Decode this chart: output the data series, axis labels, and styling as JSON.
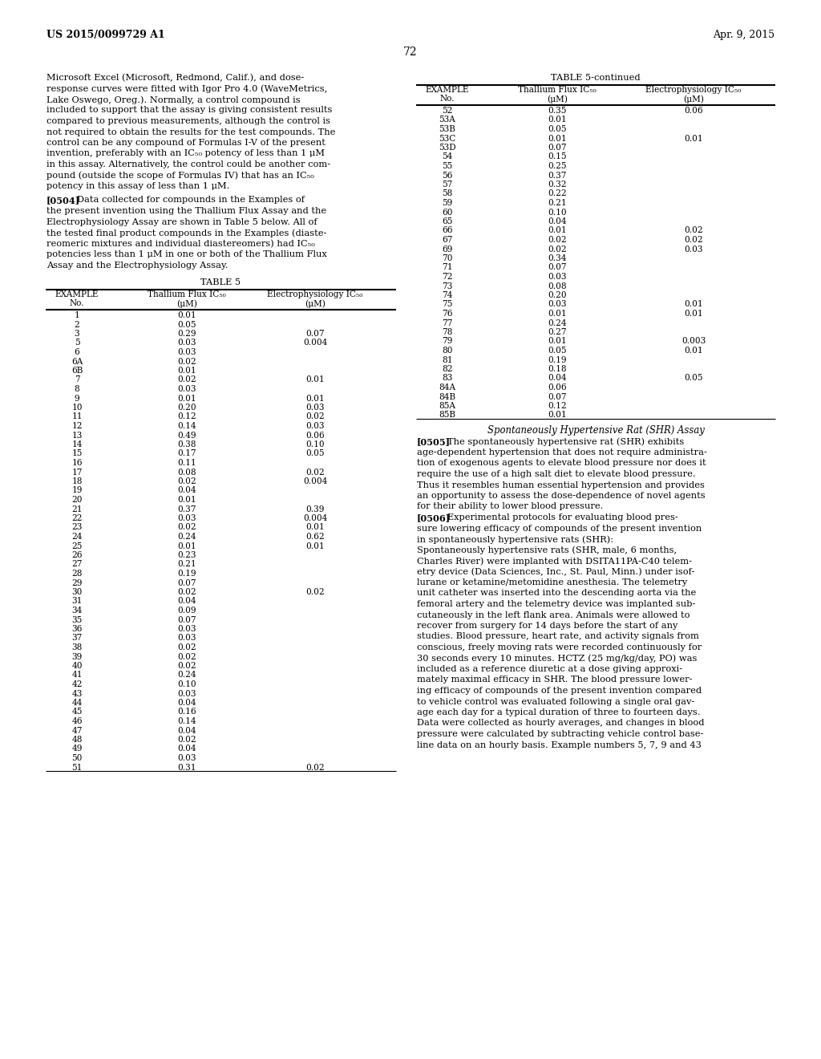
{
  "header_left": "US 2015/0099729 A1",
  "header_right": "Apr. 9, 2015",
  "page_number": "72",
  "para1_lines": [
    "Microsoft Excel (Microsoft, Redmond, Calif.), and dose-",
    "response curves were fitted with Igor Pro 4.0 (WaveMetrics,",
    "Lake Oswego, Oreg.). Normally, a control compound is",
    "included to support that the assay is giving consistent results",
    "compared to previous measurements, although the control is",
    "not required to obtain the results for the test compounds. The",
    "control can be any compound of Formulas I-V of the present",
    "invention, preferably with an IC₅₀ potency of less than 1 μM",
    "in this assay. Alternatively, the control could be another com-",
    "pound (outside the scope of Formulas IV) that has an IC₅₀",
    "potency in this assay of less than 1 μM."
  ],
  "para2_label": "[0504]",
  "para2_lines": [
    "Data collected for compounds in the Examples of",
    "the present invention using the Thallium Flux Assay and the",
    "Electrophysiology Assay are shown in Table 5 below. All of",
    "the tested final product compounds in the Examples (diaste-",
    "reomeric mixtures and individual diastereomers) had IC₅₀",
    "potencies less than 1 μM in one or both of the Thallium Flux",
    "Assay and the Electrophysiology Assay."
  ],
  "table5_title": "TABLE 5",
  "table5_rows": [
    [
      "1",
      "0.01",
      ""
    ],
    [
      "2",
      "0.05",
      ""
    ],
    [
      "3",
      "0.29",
      "0.07"
    ],
    [
      "5",
      "0.03",
      "0.004"
    ],
    [
      "6",
      "0.03",
      ""
    ],
    [
      "6A",
      "0.02",
      ""
    ],
    [
      "6B",
      "0.01",
      ""
    ],
    [
      "7",
      "0.02",
      "0.01"
    ],
    [
      "8",
      "0.03",
      ""
    ],
    [
      "9",
      "0.01",
      "0.01"
    ],
    [
      "10",
      "0.20",
      "0.03"
    ],
    [
      "11",
      "0.12",
      "0.02"
    ],
    [
      "12",
      "0.14",
      "0.03"
    ],
    [
      "13",
      "0.49",
      "0.06"
    ],
    [
      "14",
      "0.38",
      "0.10"
    ],
    [
      "15",
      "0.17",
      "0.05"
    ],
    [
      "16",
      "0.11",
      ""
    ],
    [
      "17",
      "0.08",
      "0.02"
    ],
    [
      "18",
      "0.02",
      "0.004"
    ],
    [
      "19",
      "0.04",
      ""
    ],
    [
      "20",
      "0.01",
      ""
    ],
    [
      "21",
      "0.37",
      "0.39"
    ],
    [
      "22",
      "0.03",
      "0.004"
    ],
    [
      "23",
      "0.02",
      "0.01"
    ],
    [
      "24",
      "0.24",
      "0.62"
    ],
    [
      "25",
      "0.01",
      "0.01"
    ],
    [
      "26",
      "0.23",
      ""
    ],
    [
      "27",
      "0.21",
      ""
    ],
    [
      "28",
      "0.19",
      ""
    ],
    [
      "29",
      "0.07",
      ""
    ],
    [
      "30",
      "0.02",
      "0.02"
    ],
    [
      "31",
      "0.04",
      ""
    ],
    [
      "34",
      "0.09",
      ""
    ],
    [
      "35",
      "0.07",
      ""
    ],
    [
      "36",
      "0.03",
      ""
    ],
    [
      "37",
      "0.03",
      ""
    ],
    [
      "38",
      "0.02",
      ""
    ],
    [
      "39",
      "0.02",
      ""
    ],
    [
      "40",
      "0.02",
      ""
    ],
    [
      "41",
      "0.24",
      ""
    ],
    [
      "42",
      "0.10",
      ""
    ],
    [
      "43",
      "0.03",
      ""
    ],
    [
      "44",
      "0.04",
      ""
    ],
    [
      "45",
      "0.16",
      ""
    ],
    [
      "46",
      "0.14",
      ""
    ],
    [
      "47",
      "0.04",
      ""
    ],
    [
      "48",
      "0.02",
      ""
    ],
    [
      "49",
      "0.04",
      ""
    ],
    [
      "50",
      "0.03",
      ""
    ],
    [
      "51",
      "0.31",
      "0.02"
    ]
  ],
  "table5cont_title": "TABLE 5-continued",
  "table5cont_rows": [
    [
      "52",
      "0.35",
      "0.06"
    ],
    [
      "53A",
      "0.01",
      ""
    ],
    [
      "53B",
      "0.05",
      ""
    ],
    [
      "53C",
      "0.01",
      "0.01"
    ],
    [
      "53D",
      "0.07",
      ""
    ],
    [
      "54",
      "0.15",
      ""
    ],
    [
      "55",
      "0.25",
      ""
    ],
    [
      "56",
      "0.37",
      ""
    ],
    [
      "57",
      "0.32",
      ""
    ],
    [
      "58",
      "0.22",
      ""
    ],
    [
      "59",
      "0.21",
      ""
    ],
    [
      "60",
      "0.10",
      ""
    ],
    [
      "65",
      "0.04",
      ""
    ],
    [
      "66",
      "0.01",
      "0.02"
    ],
    [
      "67",
      "0.02",
      "0.02"
    ],
    [
      "69",
      "0.02",
      "0.03"
    ],
    [
      "70",
      "0.34",
      ""
    ],
    [
      "71",
      "0.07",
      ""
    ],
    [
      "72",
      "0.03",
      ""
    ],
    [
      "73",
      "0.08",
      ""
    ],
    [
      "74",
      "0.20",
      ""
    ],
    [
      "75",
      "0.03",
      "0.01"
    ],
    [
      "76",
      "0.01",
      "0.01"
    ],
    [
      "77",
      "0.24",
      ""
    ],
    [
      "78",
      "0.27",
      ""
    ],
    [
      "79",
      "0.01",
      "0.003"
    ],
    [
      "80",
      "0.05",
      "0.01"
    ],
    [
      "81",
      "0.19",
      ""
    ],
    [
      "82",
      "0.18",
      ""
    ],
    [
      "83",
      "0.04",
      "0.05"
    ],
    [
      "84A",
      "0.06",
      ""
    ],
    [
      "84B",
      "0.07",
      ""
    ],
    [
      "85A",
      "0.12",
      ""
    ],
    [
      "85B",
      "0.01",
      ""
    ]
  ],
  "shr_title": "Spontaneously Hypertensive Rat (SHR) Assay",
  "shr_para1_label": "[0505]",
  "shr_para1_lines": [
    "The spontaneously hypertensive rat (SHR) exhibits",
    "age-dependent hypertension that does not require administra-",
    "tion of exogenous agents to elevate blood pressure nor does it",
    "require the use of a high salt diet to elevate blood pressure.",
    "Thus it resembles human essential hypertension and provides",
    "an opportunity to assess the dose-dependence of novel agents",
    "for their ability to lower blood pressure."
  ],
  "shr_para2_label": "[0506]",
  "shr_para2_lines": [
    "Experimental protocols for evaluating blood pres-",
    "sure lowering efficacy of compounds of the present invention",
    "in spontaneously hypertensive rats (SHR):"
  ],
  "shr_para3_lines": [
    "Spontaneously hypertensive rats (SHR, male, 6 months,",
    "Charles River) were implanted with DSITA11PA-C40 telem-",
    "etry device (Data Sciences, Inc., St. Paul, Minn.) under isof-",
    "lurane or ketamine/metomidine anesthesia. The telemetry",
    "unit catheter was inserted into the descending aorta via the",
    "femoral artery and the telemetry device was implanted sub-",
    "cutaneously in the left flank area. Animals were allowed to",
    "recover from surgery for 14 days before the start of any",
    "studies. Blood pressure, heart rate, and activity signals from",
    "conscious, freely moving rats were recorded continuously for",
    "30 seconds every 10 minutes. HCTZ (25 mg/kg/day, PO) was",
    "included as a reference diuretic at a dose giving approxi-",
    "mately maximal efficacy in SHR. The blood pressure lower-",
    "ing efficacy of compounds of the present invention compared",
    "to vehicle control was evaluated following a single oral gav-",
    "age each day for a typical duration of three to fourteen days.",
    "Data were collected as hourly averages, and changes in blood",
    "pressure were calculated by subtracting vehicle control base-",
    "line data on an hourly basis. Example numbers 5, 7, 9 and 43"
  ]
}
